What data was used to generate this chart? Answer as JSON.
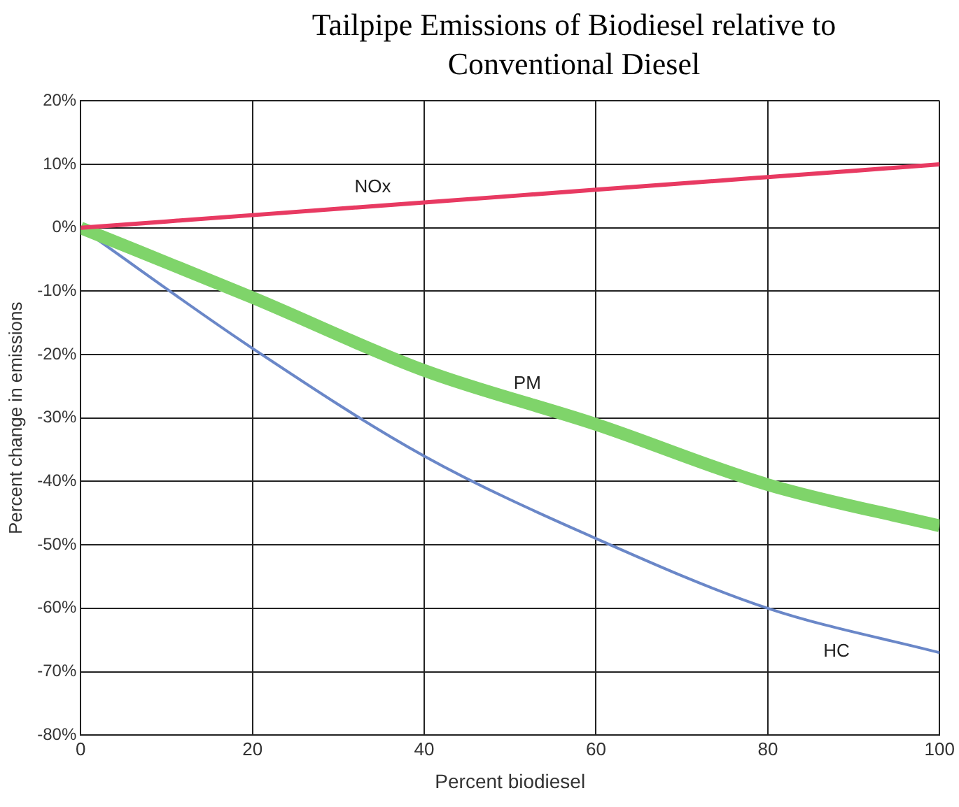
{
  "chart_data": {
    "type": "line",
    "title": "Tailpipe Emissions of Biodiesel relative to Conventional Diesel",
    "xlabel": "Percent biodiesel",
    "ylabel": "Percent change in emissions",
    "x": [
      0,
      20,
      40,
      60,
      80,
      100
    ],
    "series": [
      {
        "name": "NOx",
        "color": "#e83a62",
        "values": [
          0,
          2,
          4,
          6,
          8,
          10
        ]
      },
      {
        "name": "PM",
        "color": "#7fd46a",
        "values": [
          0,
          -11,
          -22.5,
          -31,
          -40.5,
          -47
        ]
      },
      {
        "name": "HC",
        "color": "#6a87c8",
        "values": [
          0,
          -19,
          -36,
          -49,
          -60,
          -67
        ]
      }
    ],
    "xlim": [
      0,
      100
    ],
    "xticks": [
      0,
      20,
      40,
      60,
      80,
      100
    ],
    "ylim": [
      -80,
      20
    ],
    "yticks": [
      {
        "value": -80,
        "label": "-80%"
      },
      {
        "value": -70,
        "label": "-70%"
      },
      {
        "value": -60,
        "label": "-60%"
      },
      {
        "value": -50,
        "label": "-50%"
      },
      {
        "value": -40,
        "label": "-40%"
      },
      {
        "value": -30,
        "label": "-30%"
      },
      {
        "value": -20,
        "label": "-20%"
      },
      {
        "value": -10,
        "label": "-10%"
      },
      {
        "value": 0,
        "label": "0%"
      },
      {
        "value": 10,
        "label": "10%"
      },
      {
        "value": 20,
        "label": "20%"
      }
    ],
    "grid": true,
    "legend": false,
    "marker": "none",
    "line_style": "solid"
  }
}
